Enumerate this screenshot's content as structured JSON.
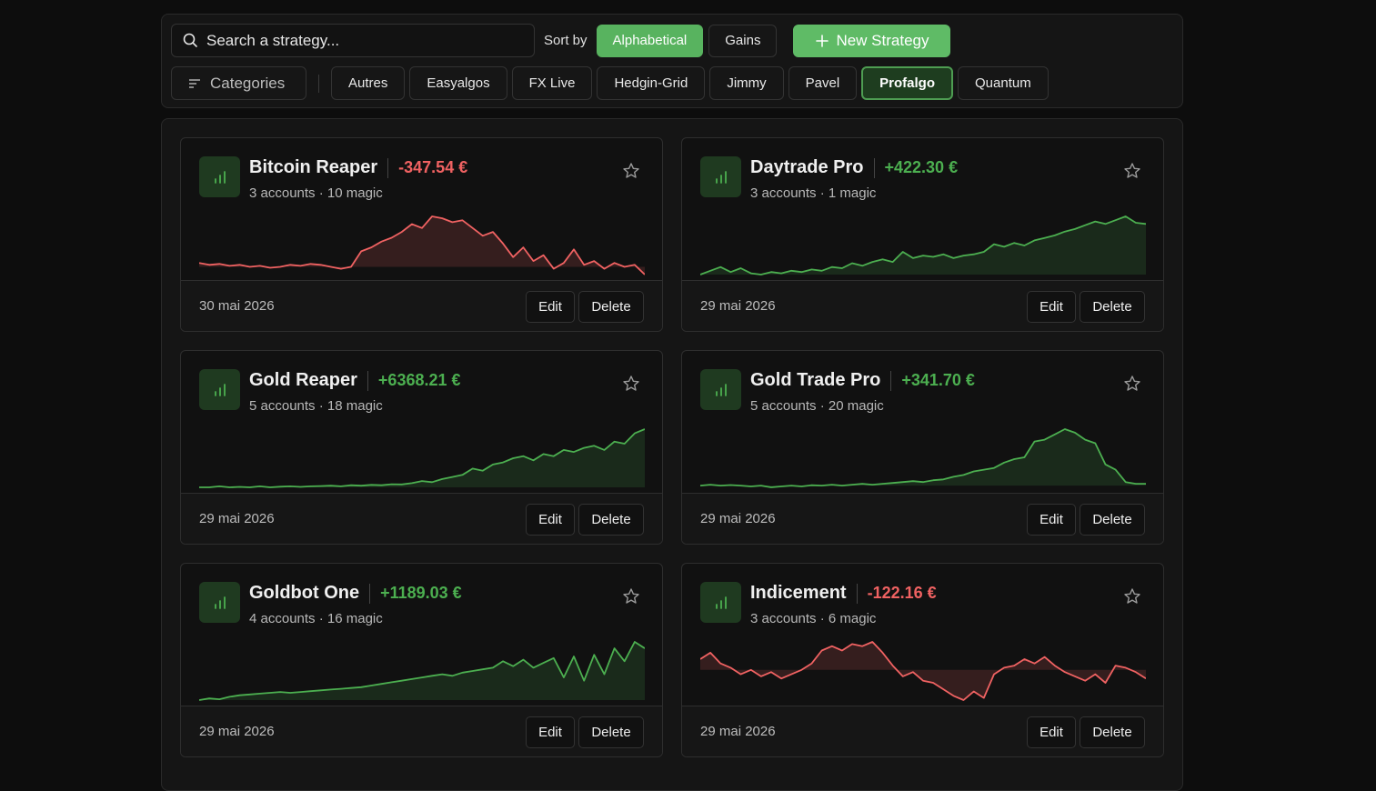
{
  "search": {
    "placeholder": "Search a strategy..."
  },
  "sort": {
    "label": "Sort by",
    "options": [
      "Alphabetical",
      "Gains"
    ],
    "selected": "Alphabetical"
  },
  "new_strategy_label": "New Strategy",
  "categories": {
    "label": "Categories",
    "items": [
      "Autres",
      "Easyalgos",
      "FX Live",
      "Hedgin-Grid",
      "Jimmy",
      "Pavel",
      "Profalgo",
      "Quantum"
    ],
    "active": "Profalgo"
  },
  "colors": {
    "positive": "#4caf50",
    "negative": "#f06262",
    "accent": "#5fbb66"
  },
  "card_actions": {
    "edit": "Edit",
    "delete": "Delete"
  },
  "strategies": [
    {
      "name": "Bitcoin Reaper",
      "gain": "-347.54 €",
      "trend": "neg",
      "meta": "3 accounts · 10 magic",
      "date": "30 mai 2026",
      "series": [
        0.2,
        0.1,
        0.15,
        0.05,
        0.1,
        0.0,
        0.05,
        -0.05,
        0.0,
        0.1,
        0.05,
        0.15,
        0.1,
        0.0,
        -0.1,
        0.0,
        0.8,
        1.0,
        1.3,
        1.5,
        1.8,
        2.2,
        2.0,
        2.6,
        2.5,
        2.3,
        2.4,
        2.0,
        1.6,
        1.8,
        1.2,
        0.5,
        1.0,
        0.3,
        0.6,
        -0.1,
        0.2,
        0.9,
        0.1,
        0.3,
        -0.1,
        0.2,
        0.0,
        0.1,
        -0.4
      ]
    },
    {
      "name": "Daytrade Pro",
      "gain": "+422.30 €",
      "trend": "pos",
      "meta": "3 accounts · 1 magic",
      "date": "29 mai 2026",
      "series": [
        0.0,
        0.3,
        0.6,
        0.2,
        0.5,
        0.1,
        0.0,
        0.2,
        0.1,
        0.3,
        0.2,
        0.4,
        0.3,
        0.6,
        0.5,
        0.9,
        0.7,
        1.0,
        1.2,
        1.0,
        1.8,
        1.3,
        1.5,
        1.4,
        1.6,
        1.3,
        1.5,
        1.6,
        1.8,
        2.4,
        2.2,
        2.5,
        2.3,
        2.7,
        2.9,
        3.1,
        3.4,
        3.6,
        3.9,
        4.2,
        4.0,
        4.3,
        4.6,
        4.1,
        4.0
      ]
    },
    {
      "name": "Gold Reaper",
      "gain": "+6368.21 €",
      "trend": "pos",
      "meta": "5 accounts · 18 magic",
      "date": "29 mai 2026",
      "series": [
        0.0,
        0.0,
        0.05,
        0.0,
        0.02,
        0.0,
        0.05,
        0.0,
        0.03,
        0.05,
        0.02,
        0.05,
        0.06,
        0.08,
        0.05,
        0.1,
        0.08,
        0.12,
        0.1,
        0.15,
        0.14,
        0.2,
        0.3,
        0.25,
        0.4,
        0.5,
        0.6,
        0.9,
        0.8,
        1.1,
        1.2,
        1.4,
        1.5,
        1.3,
        1.6,
        1.5,
        1.8,
        1.7,
        1.9,
        2.0,
        1.8,
        2.2,
        2.1,
        2.6,
        2.8
      ]
    },
    {
      "name": "Gold Trade Pro",
      "gain": "+341.70 €",
      "trend": "pos",
      "meta": "5 accounts · 20 magic",
      "date": "29 mai 2026",
      "series": [
        0.0,
        0.05,
        0.0,
        0.03,
        0.0,
        -0.05,
        0.0,
        -0.1,
        -0.05,
        0.0,
        -0.05,
        0.02,
        0.0,
        0.05,
        0.0,
        0.05,
        0.1,
        0.05,
        0.1,
        0.15,
        0.2,
        0.25,
        0.2,
        0.3,
        0.35,
        0.5,
        0.6,
        0.8,
        0.9,
        1.0,
        1.3,
        1.5,
        1.6,
        2.5,
        2.6,
        2.9,
        3.2,
        3.0,
        2.6,
        2.4,
        1.2,
        0.9,
        0.2,
        0.1,
        0.1
      ]
    },
    {
      "name": "Goldbot One",
      "gain": "+1189.03 €",
      "trend": "pos",
      "meta": "4 accounts · 16 magic",
      "date": "29 mai 2026",
      "series": [
        0.0,
        0.1,
        0.05,
        0.2,
        0.3,
        0.35,
        0.4,
        0.45,
        0.5,
        0.45,
        0.5,
        0.55,
        0.6,
        0.65,
        0.7,
        0.75,
        0.8,
        0.9,
        1.0,
        1.1,
        1.2,
        1.3,
        1.4,
        1.5,
        1.6,
        1.5,
        1.7,
        1.8,
        1.9,
        2.0,
        2.4,
        2.1,
        2.5,
        2.0,
        2.3,
        2.6,
        1.4,
        2.7,
        1.2,
        2.8,
        1.6,
        3.2,
        2.4,
        3.6,
        3.2
      ]
    },
    {
      "name": "Indicement",
      "gain": "-122.16 €",
      "trend": "neg",
      "meta": "3 accounts · 6 magic",
      "date": "29 mai 2026",
      "series": [
        0.5,
        0.8,
        0.3,
        0.1,
        -0.2,
        0.0,
        -0.3,
        -0.1,
        -0.4,
        -0.2,
        0.0,
        0.3,
        0.9,
        1.1,
        0.9,
        1.2,
        1.1,
        1.3,
        0.8,
        0.2,
        -0.3,
        -0.1,
        -0.5,
        -0.6,
        -0.9,
        -1.2,
        -1.4,
        -1.0,
        -1.3,
        -0.2,
        0.1,
        0.2,
        0.5,
        0.3,
        0.6,
        0.2,
        -0.1,
        -0.3,
        -0.5,
        -0.2,
        -0.6,
        0.2,
        0.1,
        -0.1,
        -0.4
      ]
    }
  ]
}
